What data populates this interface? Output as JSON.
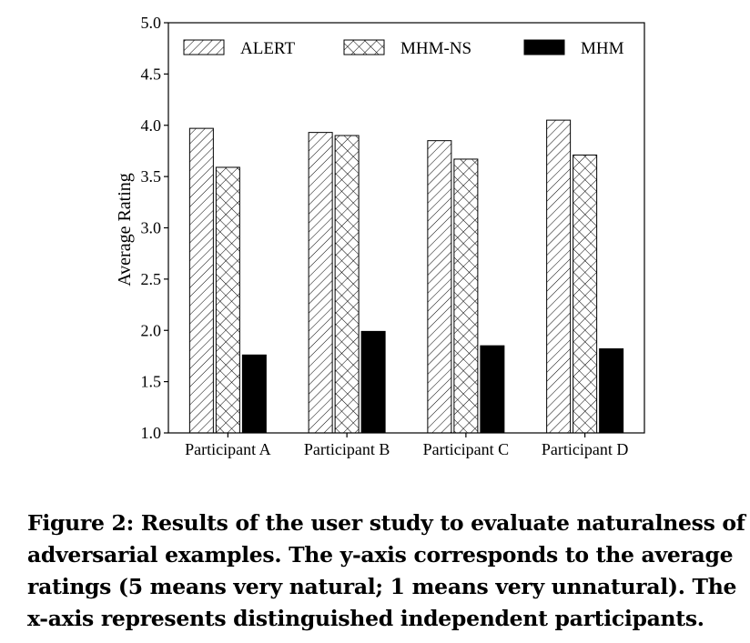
{
  "chart_data": {
    "type": "bar",
    "categories": [
      "Participant A",
      "Participant B",
      "Participant C",
      "Participant D"
    ],
    "series": [
      {
        "name": "ALERT",
        "values": [
          3.97,
          3.93,
          3.85,
          4.05
        ],
        "pattern": "diagonal-hatch"
      },
      {
        "name": "MHM-NS",
        "values": [
          3.59,
          3.9,
          3.67,
          3.71
        ],
        "pattern": "cross-hatch"
      },
      {
        "name": "MHM",
        "values": [
          1.76,
          1.99,
          1.85,
          1.82
        ],
        "pattern": "solid"
      }
    ],
    "title": "",
    "xlabel": "",
    "ylabel": "Average Rating",
    "ylim": [
      1.0,
      5.0
    ],
    "yticks": [
      "1.0",
      "1.5",
      "2.0",
      "2.5",
      "3.0",
      "3.5",
      "4.0",
      "4.5",
      "5.0"
    ],
    "grid": false,
    "legend": "top",
    "colors": {
      "edge": "#000000",
      "fill": "#ffffff",
      "solid": "#000000"
    }
  },
  "caption": "Figure 2: Results of the user study to evaluate naturalness of adversarial examples. The y-axis corresponds to the average ratings (5 means very natural; 1 means very unnatural). The x-axis represents distinguished independent participants."
}
